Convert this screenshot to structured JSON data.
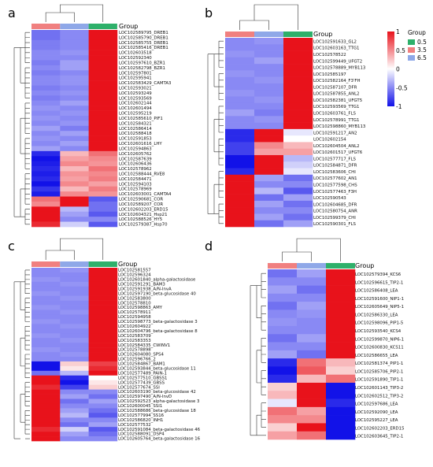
{
  "legend": {
    "title": "Group",
    "items": [
      {
        "label": "0.5",
        "color": "#2eb06a"
      },
      {
        "label": "3.5",
        "color": "#f08080"
      },
      {
        "label": "6.5",
        "color": "#8fa8e8"
      }
    ],
    "scale_ticks": [
      {
        "value": 1,
        "label": "1"
      },
      {
        "value": 0.5,
        "label": "0.5"
      },
      {
        "value": 0,
        "label": "0"
      },
      {
        "value": -0.5,
        "label": "-0.5"
      },
      {
        "value": -1,
        "label": "-1"
      }
    ],
    "scale_colors": {
      "high": "#e8121b",
      "mid": "#ffffff",
      "low": "#1212e8"
    }
  },
  "chart_data": [
    {
      "type": "heatmap",
      "panel": "a",
      "column_bar_label": "Group",
      "columns": [
        "3.5",
        "6.5",
        "0.5"
      ],
      "rows": [
        "LOC102589795_DREB1",
        "LOC102585790_DREB1",
        "LOC102585755_DREB1",
        "LOC102585416_DREB1",
        "LOC102603518",
        "LOC102592340",
        "LOC102597610_BZR1",
        "LOC102582798_BZR1",
        "LOC102597801",
        "LOC102595941",
        "LOC102583429_CAMTA3",
        "LOC102593021",
        "LOC102593249",
        "LOC102593569",
        "LOC102602144",
        "LOC102601494",
        "LOC102595219",
        "LOC102585610_PIF1",
        "LOC102584321",
        "LOC102586414",
        "LOC102588418",
        "LOC102591853",
        "LOC102601616_LHY",
        "LOC102594863",
        "LOC102605762",
        "LOC102587639",
        "LOC102606436",
        "LOC102578962",
        "LOC102588444_RVE8",
        "LOC102584471",
        "LOC102594103",
        "LOC102578969",
        "LOC102603001_CAMTA4",
        "LOC102590681_COR",
        "LOC102589207_COR",
        "LOC102602203_ERD15",
        "LOC102604321_Hsp21",
        "LOC102588526_HY5",
        "LOC102579387_Hsp70"
      ],
      "values": [
        [
          -0.6,
          -0.5,
          1
        ],
        [
          -0.6,
          -0.5,
          1
        ],
        [
          -0.55,
          -0.5,
          1
        ],
        [
          -0.55,
          -0.5,
          1
        ],
        [
          -0.5,
          -0.45,
          1
        ],
        [
          -0.5,
          -0.5,
          1
        ],
        [
          -0.55,
          -0.4,
          1
        ],
        [
          -0.5,
          -0.4,
          1
        ],
        [
          -0.55,
          -0.5,
          1
        ],
        [
          -0.5,
          -0.45,
          1
        ],
        [
          -0.5,
          -0.45,
          1
        ],
        [
          -0.55,
          -0.5,
          1
        ],
        [
          -0.5,
          -0.45,
          1
        ],
        [
          -0.55,
          -0.5,
          1
        ],
        [
          -0.5,
          -0.4,
          1
        ],
        [
          -0.45,
          -0.5,
          1
        ],
        [
          -0.5,
          -0.45,
          1
        ],
        [
          -0.45,
          -0.5,
          1
        ],
        [
          -0.5,
          -0.45,
          1
        ],
        [
          -0.4,
          -0.55,
          1
        ],
        [
          -0.5,
          -0.4,
          1
        ],
        [
          -0.45,
          -0.5,
          1
        ],
        [
          -0.5,
          -0.4,
          1
        ],
        [
          -0.4,
          -0.5,
          1
        ],
        [
          -0.9,
          0.3,
          0.6
        ],
        [
          -1,
          0.4,
          0.5
        ],
        [
          -0.95,
          0.5,
          0.45
        ],
        [
          -0.9,
          0.3,
          0.6
        ],
        [
          -0.95,
          0.45,
          0.5
        ],
        [
          -0.9,
          0.4,
          0.55
        ],
        [
          -1,
          0.5,
          0.4
        ],
        [
          -0.85,
          0.3,
          0.55
        ],
        [
          -0.95,
          0.5,
          0.45
        ],
        [
          0.6,
          1,
          -0.7
        ],
        [
          0.5,
          1,
          -0.6
        ],
        [
          1,
          -0.3,
          -0.6
        ],
        [
          1,
          -0.4,
          -0.7
        ],
        [
          1,
          -0.5,
          -0.5
        ],
        [
          0.9,
          -0.2,
          -0.7
        ]
      ]
    },
    {
      "type": "heatmap",
      "panel": "b",
      "column_bar_label": "Group",
      "columns": [
        "3.5",
        "6.5",
        "0.5"
      ],
      "rows": [
        "LOC102591633_GL2",
        "LOC102603163_TTG1",
        "LOC102578522",
        "LOC102599449_UFGT2",
        "LOC102578889_MYB113",
        "LOC102585197",
        "LOC102582164_F3'FH",
        "LOC102587107_DFR",
        "LOC102587855_ANL2",
        "LOC102582381_UFGT5",
        "LOC102593569_TTG1",
        "LOC102603761_FLS",
        "LOC102578991_TTG1",
        "LOC102598860_MYB113",
        "LOC102591217_AN2",
        "LOC102602154",
        "LOC102604504_ANL2",
        "LOC102601517_UFGT6",
        "LOC102577717_FLS",
        "LOC102584871_DFR",
        "LOC102583606_CHI",
        "LOC102577602_AN1",
        "LOC102577598_CHS",
        "LOC102577463_F3H",
        "LOC102590543",
        "LOC102604685_DFR",
        "LOC102580754_ANR",
        "LOC102599379_CHI",
        "LOC102590301_FLS"
      ],
      "values": [
        [
          -0.5,
          -0.45,
          1
        ],
        [
          -0.5,
          -0.5,
          1
        ],
        [
          -0.45,
          -0.5,
          1
        ],
        [
          -0.5,
          -0.4,
          1
        ],
        [
          -0.5,
          -0.5,
          1
        ],
        [
          -0.45,
          -0.5,
          1
        ],
        [
          -0.5,
          -0.45,
          1
        ],
        [
          -0.5,
          -0.5,
          1
        ],
        [
          -0.45,
          -0.5,
          1
        ],
        [
          -0.5,
          -0.45,
          1
        ],
        [
          -0.5,
          -0.5,
          1
        ],
        [
          -0.4,
          -0.55,
          1
        ],
        [
          -0.5,
          -0.45,
          1
        ],
        [
          -0.5,
          -0.5,
          1
        ],
        [
          -0.9,
          1,
          -0.1
        ],
        [
          -0.9,
          1,
          0
        ],
        [
          -0.8,
          0.5,
          0.3
        ],
        [
          -0.8,
          0.4,
          0.4
        ],
        [
          -1,
          1,
          -0.3
        ],
        [
          -1,
          1,
          -0.2
        ],
        [
          -0.9,
          1,
          -0.1
        ],
        [
          1,
          -0.4,
          -0.6
        ],
        [
          1,
          -0.5,
          -0.5
        ],
        [
          1,
          -0.3,
          -0.7
        ],
        [
          1,
          -0.6,
          -0.4
        ],
        [
          1,
          -0.4,
          -0.6
        ],
        [
          1,
          -0.5,
          -0.5
        ],
        [
          1,
          -0.4,
          -0.6
        ],
        [
          1,
          -0.6,
          -0.4
        ]
      ]
    },
    {
      "type": "heatmap",
      "panel": "c",
      "column_bar_label": "Group",
      "columns": [
        "3.5",
        "6.5",
        "0.5"
      ],
      "rows": [
        "LOC102581557",
        "LOC102596324",
        "LOC102601840_alpha-galactosidase",
        "LOC102591291_BAM3",
        "LOC102591938_A/N-InvA",
        "LOC102597190_beta-glucosidase 40",
        "LOC102583800",
        "LOC102578810",
        "LOC102598863_AMY",
        "LOC102578911",
        "LOC102594958",
        "LOC102598773_beta-galactosidase 3",
        "LOC102604922",
        "LOC102604796_beta-galactosidase 8",
        "LOC102583709",
        "LOC102583353",
        "LOC102584335_CWINV1",
        "LOC102578898",
        "LOC102604080_SPS4",
        "LOC102596766_2",
        "LOC102584867_BAM1",
        "LOC102593844_beta-glucosidase 11",
        "LOC102577489_PAIN-1",
        "LOC102577510_GBSS1",
        "LOC102577439_GBSS",
        "LOC102577674_SSI",
        "LOC102603190_beta-glucosidase 42",
        "LOC102597490_A/N-InvD",
        "LOC102592523_alpha-galactosidase 3",
        "LOC102600045_SSI1",
        "LOC102588686_beta-glucosidase 18",
        "LOC102577994_SS16",
        "LOC102586820_INH1",
        "LOC102577532",
        "LOC102591084_beta-galactosidase 46",
        "LOC102588091_DSP4",
        "LOC102605764_beta-galactosidase 16"
      ],
      "values": [
        [
          -0.5,
          -0.45,
          1
        ],
        [
          -0.5,
          -0.5,
          1
        ],
        [
          -0.45,
          -0.5,
          1
        ],
        [
          -0.5,
          -0.45,
          1
        ],
        [
          -0.5,
          -0.5,
          1
        ],
        [
          -0.45,
          -0.5,
          1
        ],
        [
          -0.5,
          -0.45,
          1
        ],
        [
          -0.5,
          -0.5,
          1
        ],
        [
          -0.45,
          -0.5,
          1
        ],
        [
          -0.5,
          -0.45,
          1
        ],
        [
          -0.5,
          -0.5,
          1
        ],
        [
          -0.45,
          -0.5,
          1
        ],
        [
          -0.5,
          -0.45,
          1
        ],
        [
          -0.5,
          -0.5,
          1
        ],
        [
          -0.45,
          -0.5,
          1
        ],
        [
          -0.5,
          -0.45,
          1
        ],
        [
          -0.5,
          -0.5,
          1
        ],
        [
          -0.45,
          -0.5,
          1
        ],
        [
          -0.5,
          -0.45,
          1
        ],
        [
          -0.5,
          -0.5,
          1
        ],
        [
          -1,
          0.2,
          0.8
        ],
        [
          -1,
          0.1,
          0.9
        ],
        [
          -0.6,
          -0.3,
          1
        ],
        [
          1,
          -0.9,
          0
        ],
        [
          1,
          -1,
          0.1
        ],
        [
          0.9,
          -0.8,
          0.2
        ],
        [
          1,
          -0.5,
          -0.5
        ],
        [
          1,
          -0.4,
          -0.6
        ],
        [
          1,
          -0.6,
          -0.4
        ],
        [
          1,
          -0.5,
          -0.5
        ],
        [
          1,
          -0.4,
          -0.6
        ],
        [
          1,
          -0.3,
          -0.7
        ],
        [
          1,
          -0.5,
          -0.5
        ],
        [
          1,
          -0.6,
          -0.4
        ],
        [
          0.9,
          -0.2,
          -0.7
        ],
        [
          1,
          -0.4,
          -0.6
        ],
        [
          1,
          -0.5,
          -0.5
        ]
      ]
    },
    {
      "type": "heatmap",
      "panel": "d",
      "column_bar_label": "Group",
      "columns": [
        "3.5",
        "6.5",
        "0.5"
      ],
      "rows": [
        "LOC102579394_KCS6",
        "LOC102596615_TIP2-1",
        "LOC102586408_LEA",
        "LOC102591600_NIP1-1",
        "LOC102605649_NIP5-1",
        "LOC102586330_LEA",
        "LOC102598096_PIP1-5",
        "LOC102593540_KCS4",
        "LOC102599870_NIP6-1",
        "LOC102600830_KCS11",
        "LOC102586655_LEA",
        "LOC102581374_PIP1-1",
        "LOC102585706_PIP2-1",
        "LOC102591890_TIP1-1",
        "LOC102601143_TIP3-2",
        "LOC102602512_TIP3-2",
        "LOC102597686_LEA",
        "LOC102592090_LEA",
        "LOC102595227_LEA",
        "LOC102602203_ERD15",
        "LOC102603645_TIP2-1"
      ],
      "values": [
        [
          -0.6,
          -0.4,
          1
        ],
        [
          -0.5,
          -0.5,
          1
        ],
        [
          -0.4,
          -0.6,
          1
        ],
        [
          -0.5,
          -0.5,
          1
        ],
        [
          -0.6,
          -0.4,
          1
        ],
        [
          -0.5,
          -0.45,
          1
        ],
        [
          -0.45,
          -0.5,
          1
        ],
        [
          -0.5,
          -0.5,
          1
        ],
        [
          -0.6,
          -0.4,
          1
        ],
        [
          -0.5,
          -0.5,
          1
        ],
        [
          -0.4,
          -0.6,
          1
        ],
        [
          -0.9,
          0.6,
          0.3
        ],
        [
          -1,
          0.7,
          0.2
        ],
        [
          -0.9,
          0.3,
          0.6
        ],
        [
          0.2,
          1,
          -1
        ],
        [
          0.3,
          1,
          -1
        ],
        [
          -0.1,
          1,
          -0.9
        ],
        [
          0.6,
          0.4,
          -1
        ],
        [
          0.5,
          0.5,
          -1
        ],
        [
          0.2,
          1,
          -1
        ],
        [
          0.4,
          0.6,
          -1
        ]
      ]
    }
  ]
}
